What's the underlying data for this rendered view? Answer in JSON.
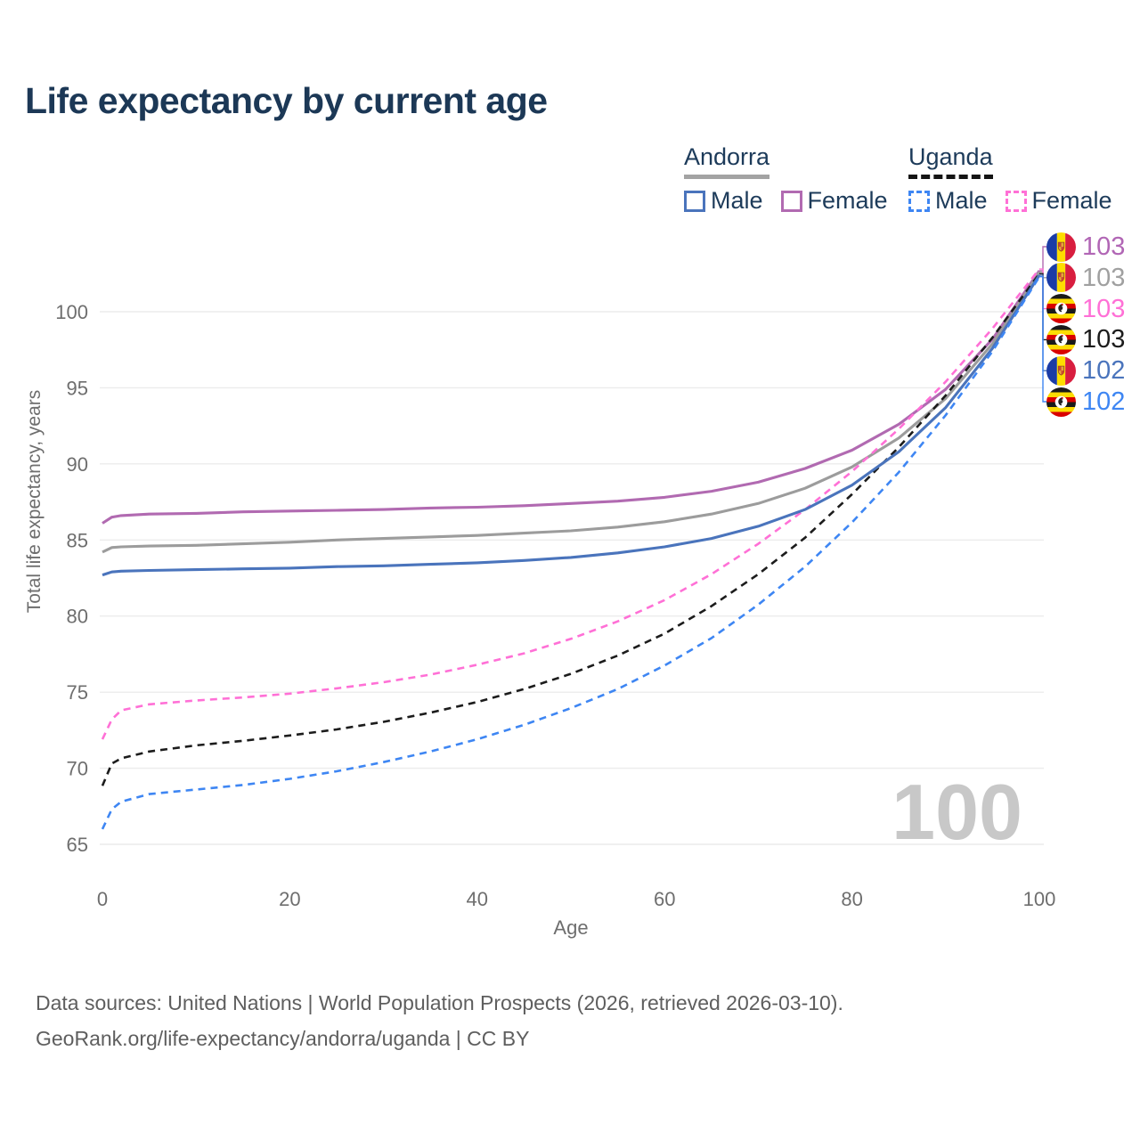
{
  "page": {
    "title": "Life expectancy by current age",
    "footer_line1": "Data sources: United Nations | World Population Prospects (2026, retrieved 2026-03-10).",
    "footer_line2": "GeoRank.org/life-expectancy/andorra/uganda | CC BY"
  },
  "legend": {
    "groups": [
      {
        "label": "Andorra",
        "underline_style": "solid",
        "underline_color": "#a3a3a3",
        "items": [
          {
            "label": "Male",
            "box_color": "#4a74bc",
            "box_style": "solid"
          },
          {
            "label": "Female",
            "box_color": "#b16ab1",
            "box_style": "solid"
          }
        ]
      },
      {
        "label": "Uganda",
        "underline_style": "dashed",
        "underline_color": "#141414",
        "items": [
          {
            "label": "Male",
            "box_color": "#3e86f3",
            "box_style": "dashed"
          },
          {
            "label": "Female",
            "box_color": "#ff70d6",
            "box_style": "dashed"
          }
        ]
      }
    ]
  },
  "chart_data": {
    "type": "line",
    "title": "Life expectancy by current age",
    "xlabel": "Age",
    "ylabel": "Total life expectancy, years",
    "x_ticks": [
      0,
      20,
      40,
      60,
      80,
      100
    ],
    "y_ticks": [
      65,
      70,
      75,
      80,
      85,
      90,
      95,
      100
    ],
    "xlim": [
      0,
      100
    ],
    "ylim": [
      65,
      103
    ],
    "grid": "horizontal",
    "age_indicator_watermark": "100",
    "x": [
      0,
      1,
      2,
      5,
      10,
      15,
      20,
      25,
      30,
      35,
      40,
      45,
      50,
      55,
      60,
      65,
      70,
      75,
      80,
      85,
      90,
      95,
      100
    ],
    "series": [
      {
        "name": "Andorra Female",
        "country": "Andorra",
        "sex": "Female",
        "line_style": "solid",
        "color": "#b16ab1",
        "flag": "andorra-flag-icon",
        "end_label": "103",
        "end_label_color": "#b166b5",
        "values": [
          86.1,
          86.5,
          86.6,
          86.7,
          86.75,
          86.85,
          86.9,
          86.95,
          87.0,
          87.1,
          87.15,
          87.25,
          87.4,
          87.55,
          87.8,
          88.2,
          88.8,
          89.7,
          90.9,
          92.6,
          94.9,
          98.2,
          102.7
        ]
      },
      {
        "name": "Andorra (both sexes)",
        "country": "Andorra",
        "sex": "All",
        "line_style": "solid",
        "color": "#9c9c9c",
        "flag": "andorra-flag-icon",
        "end_label": "103",
        "end_label_color": "#a0a0a0",
        "values": [
          84.2,
          84.5,
          84.55,
          84.6,
          84.65,
          84.75,
          84.85,
          85.0,
          85.1,
          85.2,
          85.3,
          85.45,
          85.6,
          85.85,
          86.2,
          86.7,
          87.4,
          88.4,
          89.8,
          91.7,
          94.3,
          97.9,
          102.6
        ]
      },
      {
        "name": "Uganda Female",
        "country": "Uganda",
        "sex": "Female",
        "line_style": "dashed",
        "color": "#ff70d6",
        "flag": "uganda-flag-icon",
        "end_label": "103",
        "end_label_color": "#ff70d6",
        "values": [
          71.9,
          73.2,
          73.8,
          74.2,
          74.45,
          74.65,
          74.9,
          75.25,
          75.65,
          76.15,
          76.8,
          77.55,
          78.5,
          79.65,
          81.05,
          82.75,
          84.75,
          87.0,
          89.5,
          92.3,
          95.4,
          98.9,
          102.8
        ]
      },
      {
        "name": "Uganda (both sexes)",
        "country": "Uganda",
        "sex": "All",
        "line_style": "dashed",
        "color": "#1c1c1c",
        "flag": "uganda-flag-icon",
        "end_label": "103",
        "end_label_color": "#1c1c1c",
        "values": [
          68.85,
          70.3,
          70.65,
          71.1,
          71.5,
          71.8,
          72.15,
          72.55,
          73.05,
          73.65,
          74.35,
          75.2,
          76.2,
          77.4,
          78.85,
          80.65,
          82.75,
          85.15,
          88.0,
          91.1,
          94.5,
          98.3,
          102.5
        ]
      },
      {
        "name": "Andorra Male",
        "country": "Andorra",
        "sex": "Male",
        "line_style": "solid",
        "color": "#4a74bc",
        "flag": "andorra-flag-icon",
        "end_label": "102",
        "end_label_color": "#4a74bc",
        "values": [
          82.7,
          82.9,
          82.95,
          83.0,
          83.05,
          83.1,
          83.15,
          83.25,
          83.3,
          83.4,
          83.5,
          83.65,
          83.85,
          84.15,
          84.55,
          85.1,
          85.9,
          87.0,
          88.6,
          90.8,
          93.7,
          97.6,
          102.4
        ]
      },
      {
        "name": "Uganda Male",
        "country": "Uganda",
        "sex": "Male",
        "line_style": "dashed",
        "color": "#3e86f3",
        "flag": "uganda-flag-icon",
        "end_label": "102",
        "end_label_color": "#3e86f3",
        "values": [
          66.0,
          67.3,
          67.8,
          68.3,
          68.6,
          68.9,
          69.3,
          69.8,
          70.4,
          71.1,
          71.9,
          72.85,
          73.95,
          75.2,
          76.75,
          78.55,
          80.75,
          83.25,
          86.15,
          89.45,
          93.2,
          97.4,
          102.3
        ]
      }
    ]
  }
}
